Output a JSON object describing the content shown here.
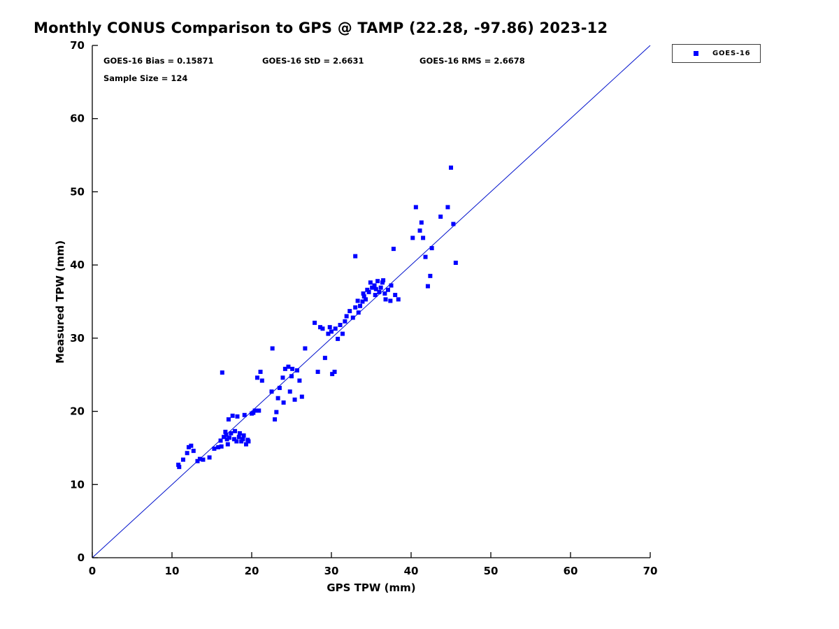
{
  "title": "Monthly CONUS Comparison to GPS @ TAMP (22.28, -97.86) 2023-12",
  "stats": {
    "bias_label": "GOES-16 Bias = 0.15871",
    "std_label": "GOES-16 StD = 2.6631",
    "rms_label": "GOES-16 RMS = 2.6678",
    "sample_label": "Sample Size = 124"
  },
  "legend": {
    "entries": [
      {
        "label": "GOES-16",
        "marker": "square-icon",
        "color": "#0000ff"
      }
    ]
  },
  "chart_data": {
    "type": "scatter",
    "title": "Monthly CONUS Comparison to GPS @ TAMP (22.28, -97.86) 2023-12",
    "xlabel": "GPS TPW (mm)",
    "ylabel": "Measured TPW (mm)",
    "xlim": [
      0,
      70
    ],
    "ylim": [
      0,
      70
    ],
    "xticks": [
      0,
      10,
      20,
      30,
      40,
      50,
      60,
      70
    ],
    "yticks": [
      0,
      10,
      20,
      30,
      40,
      50,
      60,
      70
    ],
    "grid": false,
    "legend_position": "top-right-outside",
    "reference_line": {
      "from": [
        0,
        0
      ],
      "to": [
        70,
        70
      ],
      "color": "#0011cc",
      "meaning": "1:1 line"
    },
    "series": [
      {
        "name": "GOES-16",
        "marker": "square",
        "color": "#0000ff",
        "points": [
          [
            10.8,
            12.7
          ],
          [
            11.4,
            13.4
          ],
          [
            11.9,
            14.3
          ],
          [
            12.1,
            15.1
          ],
          [
            12.7,
            14.6
          ],
          [
            13.2,
            13.2
          ],
          [
            13.9,
            13.4
          ],
          [
            14.7,
            13.7
          ],
          [
            10.9,
            12.4
          ],
          [
            12.4,
            15.3
          ],
          [
            13.5,
            13.5
          ],
          [
            15.3,
            14.9
          ],
          [
            15.8,
            15.1
          ],
          [
            16.1,
            16.0
          ],
          [
            16.3,
            25.3
          ],
          [
            16.5,
            16.5
          ],
          [
            16.7,
            17.2
          ],
          [
            16.9,
            16.2
          ],
          [
            17.1,
            18.9
          ],
          [
            17.4,
            17.0
          ],
          [
            17.6,
            19.4
          ],
          [
            17.8,
            16.2
          ],
          [
            18.1,
            15.9
          ],
          [
            18.2,
            19.3
          ],
          [
            18.5,
            17.0
          ],
          [
            18.7,
            15.9
          ],
          [
            18.9,
            16.2
          ],
          [
            19.1,
            19.5
          ],
          [
            19.3,
            15.5
          ],
          [
            19.6,
            15.9
          ],
          [
            20.0,
            19.7
          ],
          [
            16.2,
            15.2
          ],
          [
            16.8,
            16.8
          ],
          [
            17.2,
            16.4
          ],
          [
            17.9,
            17.3
          ],
          [
            18.4,
            16.5
          ],
          [
            19.0,
            16.7
          ],
          [
            19.5,
            16.1
          ],
          [
            17.0,
            15.5
          ],
          [
            20.4,
            20.1
          ],
          [
            20.9,
            20.1
          ],
          [
            20.7,
            24.6
          ],
          [
            21.1,
            25.4
          ],
          [
            21.3,
            24.2
          ],
          [
            22.5,
            22.7
          ],
          [
            22.6,
            28.6
          ],
          [
            22.9,
            18.9
          ],
          [
            23.1,
            19.9
          ],
          [
            23.3,
            21.8
          ],
          [
            23.5,
            23.2
          ],
          [
            23.9,
            24.6
          ],
          [
            24.2,
            25.8
          ],
          [
            24.6,
            26.1
          ],
          [
            24.8,
            22.7
          ],
          [
            25.1,
            25.8
          ],
          [
            25.4,
            21.6
          ],
          [
            25.7,
            25.6
          ],
          [
            26.0,
            24.2
          ],
          [
            26.3,
            22.0
          ],
          [
            26.7,
            28.6
          ],
          [
            20.2,
            19.8
          ],
          [
            24.0,
            21.2
          ],
          [
            25.0,
            24.8
          ],
          [
            27.9,
            32.1
          ],
          [
            28.3,
            25.4
          ],
          [
            28.6,
            31.5
          ],
          [
            28.9,
            31.3
          ],
          [
            29.2,
            27.3
          ],
          [
            29.6,
            30.6
          ],
          [
            29.8,
            31.5
          ],
          [
            30.1,
            25.1
          ],
          [
            30.4,
            25.4
          ],
          [
            30.5,
            31.3
          ],
          [
            30.8,
            29.9
          ],
          [
            31.1,
            31.8
          ],
          [
            31.4,
            30.6
          ],
          [
            31.7,
            32.3
          ],
          [
            31.9,
            33.0
          ],
          [
            32.3,
            33.7
          ],
          [
            30.0,
            30.9
          ],
          [
            32.7,
            32.8
          ],
          [
            33.0,
            34.2
          ],
          [
            33.0,
            41.2
          ],
          [
            33.3,
            35.1
          ],
          [
            33.6,
            34.4
          ],
          [
            33.9,
            35.0
          ],
          [
            34.0,
            36.1
          ],
          [
            34.3,
            35.3
          ],
          [
            34.5,
            36.6
          ],
          [
            34.7,
            36.3
          ],
          [
            34.9,
            37.6
          ],
          [
            35.1,
            36.9
          ],
          [
            35.4,
            37.2
          ],
          [
            35.5,
            35.9
          ],
          [
            35.8,
            37.8
          ],
          [
            36.0,
            36.3
          ],
          [
            36.2,
            36.9
          ],
          [
            36.4,
            37.6
          ],
          [
            36.7,
            36.1
          ],
          [
            36.8,
            35.3
          ],
          [
            37.1,
            36.6
          ],
          [
            37.4,
            35.1
          ],
          [
            37.5,
            37.2
          ],
          [
            37.8,
            42.2
          ],
          [
            38.0,
            35.9
          ],
          [
            38.4,
            35.3
          ],
          [
            34.1,
            35.7
          ],
          [
            35.6,
            36.7
          ],
          [
            36.5,
            37.9
          ],
          [
            33.4,
            33.5
          ],
          [
            40.2,
            43.7
          ],
          [
            40.6,
            47.9
          ],
          [
            41.1,
            44.7
          ],
          [
            41.3,
            45.8
          ],
          [
            41.5,
            43.7
          ],
          [
            41.8,
            41.1
          ],
          [
            42.1,
            37.1
          ],
          [
            42.4,
            38.5
          ],
          [
            42.6,
            42.3
          ],
          [
            43.7,
            46.6
          ],
          [
            44.6,
            47.9
          ],
          [
            45.0,
            53.3
          ],
          [
            45.3,
            45.6
          ],
          [
            45.6,
            40.3
          ]
        ]
      }
    ]
  }
}
